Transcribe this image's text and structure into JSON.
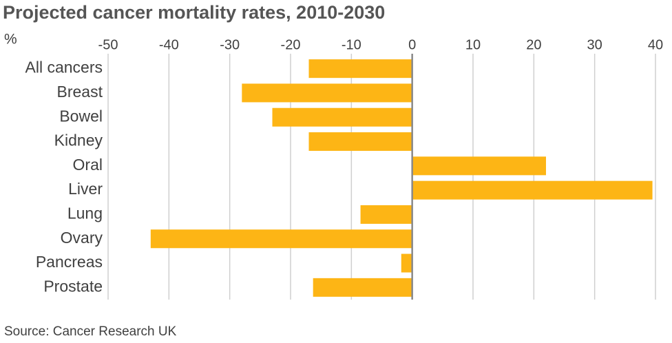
{
  "chart_data": {
    "type": "hbar",
    "title": "Projected cancer mortality rates, 2010-2030",
    "x_label": "%",
    "categories": [
      "All cancers",
      "Breast",
      "Bowel",
      "Kidney",
      "Oral",
      "Liver",
      "Lung",
      "Ovary",
      "Pancreas",
      "Prostate"
    ],
    "values": [
      -17,
      -28,
      -23,
      -17,
      22,
      39.5,
      -8.5,
      -43,
      -1.8,
      -16.3
    ],
    "color": "#fdb515",
    "xlim": [
      -50,
      40
    ],
    "xticks": [
      -50,
      -40,
      -30,
      -20,
      -10,
      0,
      10,
      20,
      30,
      40
    ],
    "grid": true,
    "source": "Source: Cancer Research UK"
  }
}
